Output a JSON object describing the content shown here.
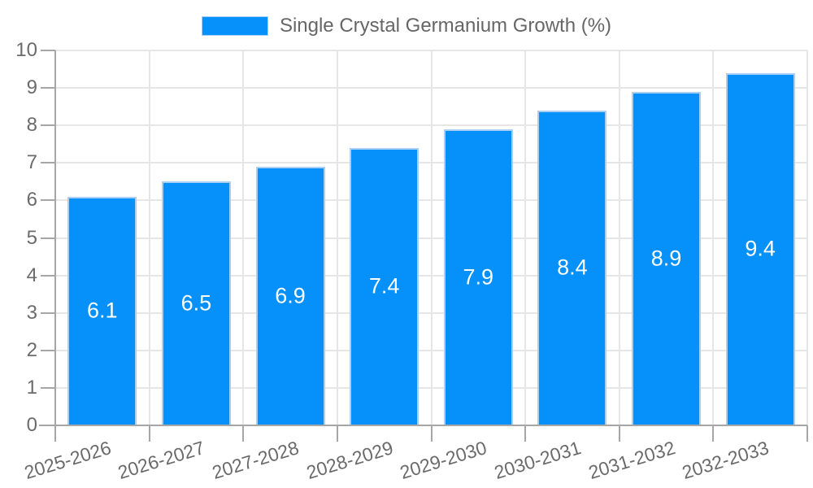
{
  "legend": {
    "label": "Single Crystal Germanium Growth (%)"
  },
  "colors": {
    "bar_fill": "#0590fa",
    "bar_border": "#a9cff5",
    "grid": "#e6e6e6",
    "axis": "#a6a6a6",
    "tick_text": "#6b6b6b",
    "bar_label_text": "#ffffff",
    "background": "#ffffff"
  },
  "chart_data": {
    "type": "bar",
    "title": "",
    "legend_label": "Single Crystal Germanium Growth (%)",
    "legend_position": "top",
    "categories": [
      "2025-2026",
      "2026-2027",
      "2027-2028",
      "2028-2029",
      "2029-2030",
      "2030-2031",
      "2031-2032",
      "2032-2033"
    ],
    "values": [
      6.1,
      6.5,
      6.9,
      7.4,
      7.9,
      8.4,
      8.9,
      9.4
    ],
    "bar_value_labels": [
      "6.1",
      "6.5",
      "6.9",
      "7.4",
      "7.9",
      "8.4",
      "8.9",
      "9.4"
    ],
    "xlabel": "",
    "ylabel": "",
    "ylim": [
      0,
      10
    ],
    "ytick_step": 1,
    "ytick_labels": [
      "0",
      "1",
      "2",
      "3",
      "4",
      "5",
      "6",
      "7",
      "8",
      "9",
      "10"
    ],
    "grid": true,
    "x_label_rotation_deg": -17
  }
}
